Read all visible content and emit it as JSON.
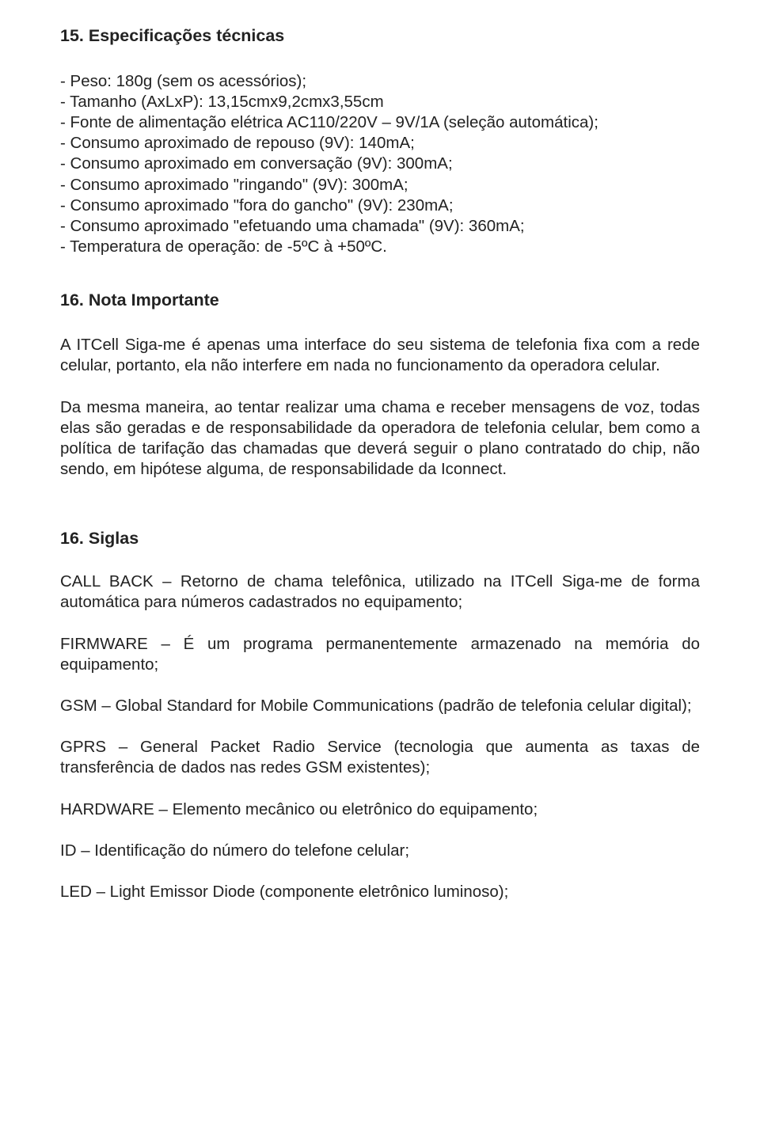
{
  "colors": {
    "text": "#222222",
    "background": "#ffffff"
  },
  "typography": {
    "heading_fontsize_pt": 16,
    "body_fontsize_pt": 15,
    "font_family": "Arial, Helvetica, sans-serif",
    "heading_weight": 700,
    "body_weight": 400
  },
  "section15": {
    "title": "15. Especificações técnicas",
    "items": [
      "- Peso: 180g (sem os acessórios);",
      "- Tamanho (AxLxP): 13,15cmx9,2cmx3,55cm",
      "- Fonte de alimentação elétrica AC110/220V – 9V/1A (seleção automática);",
      "- Consumo aproximado de repouso (9V): 140mA;",
      "- Consumo aproximado em conversação (9V): 300mA;",
      "- Consumo aproximado \"ringando\" (9V): 300mA;",
      "- Consumo aproximado \"fora do gancho\" (9V): 230mA;",
      "- Consumo aproximado \"efetuando uma chamada\" (9V): 360mA;",
      "- Temperatura de operação: de -5ºC à +50ºC."
    ]
  },
  "section16a": {
    "title": "16. Nota Importante",
    "para1": "A ITCell Siga-me é apenas uma interface do seu sistema de telefonia fixa com a rede celular, portanto, ela não interfere em nada no funcionamento da operadora celular.",
    "para2": "Da mesma maneira, ao tentar realizar uma chama e receber mensagens de voz, todas elas são geradas e de responsabilidade da operadora de telefonia celular, bem como a política de tarifação das chamadas que deverá seguir o plano contratado do chip, não sendo, em hipótese alguma, de responsabilidade da Iconnect."
  },
  "section16b": {
    "title": "16. Siglas",
    "entries": [
      "CALL BACK – Retorno de chama telefônica, utilizado na ITCell Siga-me de forma automática para números cadastrados no equipamento;",
      "FIRMWARE – É um programa permanentemente armazenado na memória do equipamento;",
      "GSM – Global Standard for Mobile Communications (padrão de telefonia celular digital);",
      "GPRS – General Packet Radio Service (tecnologia que aumenta as taxas de transferência de dados nas redes GSM existentes);",
      "HARDWARE – Elemento mecânico ou eletrônico do equipamento;",
      "ID – Identificação do número do telefone celular;",
      "LED – Light Emissor Diode (componente eletrônico luminoso);"
    ]
  }
}
